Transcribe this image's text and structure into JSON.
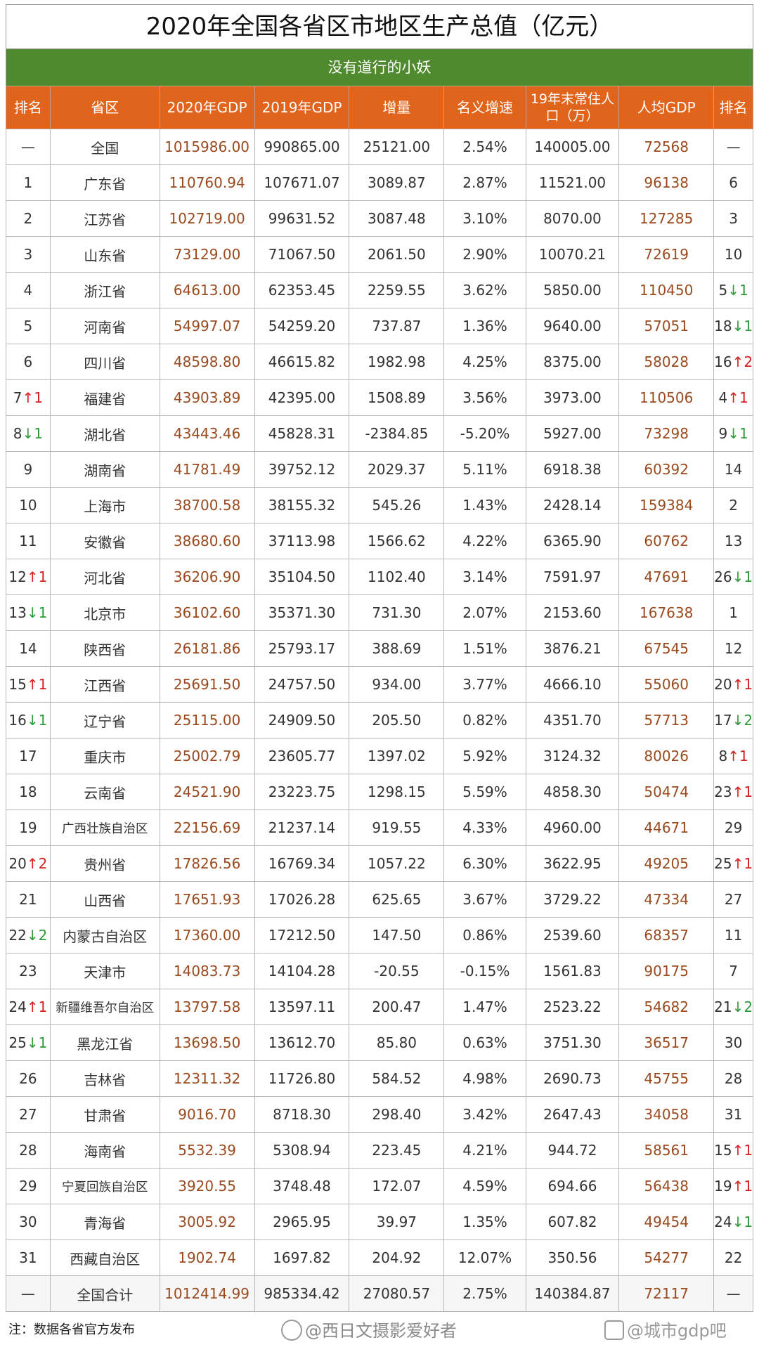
{
  "title": "2020年全国各省区市地区生产总值（亿元）",
  "subtitle": "没有道行的小妖",
  "headers": [
    "排名",
    "省区",
    "2020年GDP",
    "2019年GDP",
    "增量",
    "名义增速",
    "19年末常住人口（万）",
    "人均GDP",
    "排名"
  ],
  "rows": [
    {
      "rank": "—",
      "rank_arrow": "",
      "rank_change": "",
      "name": "全国",
      "gdp2020": "1015986.00",
      "gdp2019": "990865.00",
      "inc": "25121.00",
      "growth": "2.54%",
      "pop": "140005.00",
      "pc": "72568",
      "pc_rank": "—",
      "pc_arrow": "",
      "pc_change": ""
    },
    {
      "rank": "1",
      "rank_arrow": "",
      "rank_change": "",
      "name": "广东省",
      "gdp2020": "110760.94",
      "gdp2019": "107671.07",
      "inc": "3089.87",
      "growth": "2.87%",
      "pop": "11521.00",
      "pc": "96138",
      "pc_rank": "6",
      "pc_arrow": "",
      "pc_change": ""
    },
    {
      "rank": "2",
      "rank_arrow": "",
      "rank_change": "",
      "name": "江苏省",
      "gdp2020": "102719.00",
      "gdp2019": "99631.52",
      "inc": "3087.48",
      "growth": "3.10%",
      "pop": "8070.00",
      "pc": "127285",
      "pc_rank": "3",
      "pc_arrow": "",
      "pc_change": ""
    },
    {
      "rank": "3",
      "rank_arrow": "",
      "rank_change": "",
      "name": "山东省",
      "gdp2020": "73129.00",
      "gdp2019": "71067.50",
      "inc": "2061.50",
      "growth": "2.90%",
      "pop": "10070.21",
      "pc": "72619",
      "pc_rank": "10",
      "pc_arrow": "",
      "pc_change": ""
    },
    {
      "rank": "4",
      "rank_arrow": "",
      "rank_change": "",
      "name": "浙江省",
      "gdp2020": "64613.00",
      "gdp2019": "62353.45",
      "inc": "2259.55",
      "growth": "3.62%",
      "pop": "5850.00",
      "pc": "110450",
      "pc_rank": "5",
      "pc_arrow": "↓",
      "pc_change": "1"
    },
    {
      "rank": "5",
      "rank_arrow": "",
      "rank_change": "",
      "name": "河南省",
      "gdp2020": "54997.07",
      "gdp2019": "54259.20",
      "inc": "737.87",
      "growth": "1.36%",
      "pop": "9640.00",
      "pc": "57051",
      "pc_rank": "18",
      "pc_arrow": "↓",
      "pc_change": "1"
    },
    {
      "rank": "6",
      "rank_arrow": "",
      "rank_change": "",
      "name": "四川省",
      "gdp2020": "48598.80",
      "gdp2019": "46615.82",
      "inc": "1982.98",
      "growth": "4.25%",
      "pop": "8375.00",
      "pc": "58028",
      "pc_rank": "16",
      "pc_arrow": "↑",
      "pc_change": "2"
    },
    {
      "rank": "7",
      "rank_arrow": "↑",
      "rank_change": "1",
      "name": "福建省",
      "gdp2020": "43903.89",
      "gdp2019": "42395.00",
      "inc": "1508.89",
      "growth": "3.56%",
      "pop": "3973.00",
      "pc": "110506",
      "pc_rank": "4",
      "pc_arrow": "↑",
      "pc_change": "1"
    },
    {
      "rank": "8",
      "rank_arrow": "↓",
      "rank_change": "1",
      "name": "湖北省",
      "gdp2020": "43443.46",
      "gdp2019": "45828.31",
      "inc": "-2384.85",
      "growth": "-5.20%",
      "pop": "5927.00",
      "pc": "73298",
      "pc_rank": "9",
      "pc_arrow": "↓",
      "pc_change": "1"
    },
    {
      "rank": "9",
      "rank_arrow": "",
      "rank_change": "",
      "name": "湖南省",
      "gdp2020": "41781.49",
      "gdp2019": "39752.12",
      "inc": "2029.37",
      "growth": "5.11%",
      "pop": "6918.38",
      "pc": "60392",
      "pc_rank": "14",
      "pc_arrow": "",
      "pc_change": ""
    },
    {
      "rank": "10",
      "rank_arrow": "",
      "rank_change": "",
      "name": "上海市",
      "gdp2020": "38700.58",
      "gdp2019": "38155.32",
      "inc": "545.26",
      "growth": "1.43%",
      "pop": "2428.14",
      "pc": "159384",
      "pc_rank": "2",
      "pc_arrow": "",
      "pc_change": ""
    },
    {
      "rank": "11",
      "rank_arrow": "",
      "rank_change": "",
      "name": "安徽省",
      "gdp2020": "38680.60",
      "gdp2019": "37113.98",
      "inc": "1566.62",
      "growth": "4.22%",
      "pop": "6365.90",
      "pc": "60762",
      "pc_rank": "13",
      "pc_arrow": "",
      "pc_change": ""
    },
    {
      "rank": "12",
      "rank_arrow": "↑",
      "rank_change": "1",
      "name": "河北省",
      "gdp2020": "36206.90",
      "gdp2019": "35104.50",
      "inc": "1102.40",
      "growth": "3.14%",
      "pop": "7591.97",
      "pc": "47691",
      "pc_rank": "26",
      "pc_arrow": "↓",
      "pc_change": "1"
    },
    {
      "rank": "13",
      "rank_arrow": "↓",
      "rank_change": "1",
      "name": "北京市",
      "gdp2020": "36102.60",
      "gdp2019": "35371.30",
      "inc": "731.30",
      "growth": "2.07%",
      "pop": "2153.60",
      "pc": "167638",
      "pc_rank": "1",
      "pc_arrow": "",
      "pc_change": ""
    },
    {
      "rank": "14",
      "rank_arrow": "",
      "rank_change": "",
      "name": "陕西省",
      "gdp2020": "26181.86",
      "gdp2019": "25793.17",
      "inc": "388.69",
      "growth": "1.51%",
      "pop": "3876.21",
      "pc": "67545",
      "pc_rank": "12",
      "pc_arrow": "",
      "pc_change": ""
    },
    {
      "rank": "15",
      "rank_arrow": "↑",
      "rank_change": "1",
      "name": "江西省",
      "gdp2020": "25691.50",
      "gdp2019": "24757.50",
      "inc": "934.00",
      "growth": "3.77%",
      "pop": "4666.10",
      "pc": "55060",
      "pc_rank": "20",
      "pc_arrow": "↑",
      "pc_change": "1"
    },
    {
      "rank": "16",
      "rank_arrow": "↓",
      "rank_change": "1",
      "name": "辽宁省",
      "gdp2020": "25115.00",
      "gdp2019": "24909.50",
      "inc": "205.50",
      "growth": "0.82%",
      "pop": "4351.70",
      "pc": "57713",
      "pc_rank": "17",
      "pc_arrow": "↓",
      "pc_change": "2"
    },
    {
      "rank": "17",
      "rank_arrow": "",
      "rank_change": "",
      "name": "重庆市",
      "gdp2020": "25002.79",
      "gdp2019": "23605.77",
      "inc": "1397.02",
      "growth": "5.92%",
      "pop": "3124.32",
      "pc": "80026",
      "pc_rank": "8",
      "pc_arrow": "↑",
      "pc_change": "1"
    },
    {
      "rank": "18",
      "rank_arrow": "",
      "rank_change": "",
      "name": "云南省",
      "gdp2020": "24521.90",
      "gdp2019": "23223.75",
      "inc": "1298.15",
      "growth": "5.59%",
      "pop": "4858.30",
      "pc": "50474",
      "pc_rank": "23",
      "pc_arrow": "↑",
      "pc_change": "1"
    },
    {
      "rank": "19",
      "rank_arrow": "",
      "rank_change": "",
      "name": "广西壮族自治区",
      "gdp2020": "22156.69",
      "gdp2019": "21237.14",
      "inc": "919.55",
      "growth": "4.33%",
      "pop": "4960.00",
      "pc": "44671",
      "pc_rank": "29",
      "pc_arrow": "",
      "pc_change": ""
    },
    {
      "rank": "20",
      "rank_arrow": "↑",
      "rank_change": "2",
      "name": "贵州省",
      "gdp2020": "17826.56",
      "gdp2019": "16769.34",
      "inc": "1057.22",
      "growth": "6.30%",
      "pop": "3622.95",
      "pc": "49205",
      "pc_rank": "25",
      "pc_arrow": "↑",
      "pc_change": "1"
    },
    {
      "rank": "21",
      "rank_arrow": "",
      "rank_change": "",
      "name": "山西省",
      "gdp2020": "17651.93",
      "gdp2019": "17026.28",
      "inc": "625.65",
      "growth": "3.67%",
      "pop": "3729.22",
      "pc": "47334",
      "pc_rank": "27",
      "pc_arrow": "",
      "pc_change": ""
    },
    {
      "rank": "22",
      "rank_arrow": "↓",
      "rank_change": "2",
      "name": "内蒙古自治区",
      "gdp2020": "17360.00",
      "gdp2019": "17212.50",
      "inc": "147.50",
      "growth": "0.86%",
      "pop": "2539.60",
      "pc": "68357",
      "pc_rank": "11",
      "pc_arrow": "",
      "pc_change": ""
    },
    {
      "rank": "23",
      "rank_arrow": "",
      "rank_change": "",
      "name": "天津市",
      "gdp2020": "14083.73",
      "gdp2019": "14104.28",
      "inc": "-20.55",
      "growth": "-0.15%",
      "pop": "1561.83",
      "pc": "90175",
      "pc_rank": "7",
      "pc_arrow": "",
      "pc_change": ""
    },
    {
      "rank": "24",
      "rank_arrow": "↑",
      "rank_change": "1",
      "name": "新疆维吾尔自治区",
      "gdp2020": "13797.58",
      "gdp2019": "13597.11",
      "inc": "200.47",
      "growth": "1.47%",
      "pop": "2523.22",
      "pc": "54682",
      "pc_rank": "21",
      "pc_arrow": "↓",
      "pc_change": "2"
    },
    {
      "rank": "25",
      "rank_arrow": "↓",
      "rank_change": "1",
      "name": "黑龙江省",
      "gdp2020": "13698.50",
      "gdp2019": "13612.70",
      "inc": "85.80",
      "growth": "0.63%",
      "pop": "3751.30",
      "pc": "36517",
      "pc_rank": "30",
      "pc_arrow": "",
      "pc_change": ""
    },
    {
      "rank": "26",
      "rank_arrow": "",
      "rank_change": "",
      "name": "吉林省",
      "gdp2020": "12311.32",
      "gdp2019": "11726.80",
      "inc": "584.52",
      "growth": "4.98%",
      "pop": "2690.73",
      "pc": "45755",
      "pc_rank": "28",
      "pc_arrow": "",
      "pc_change": ""
    },
    {
      "rank": "27",
      "rank_arrow": "",
      "rank_change": "",
      "name": "甘肃省",
      "gdp2020": "9016.70",
      "gdp2019": "8718.30",
      "inc": "298.40",
      "growth": "3.42%",
      "pop": "2647.43",
      "pc": "34058",
      "pc_rank": "31",
      "pc_arrow": "",
      "pc_change": ""
    },
    {
      "rank": "28",
      "rank_arrow": "",
      "rank_change": "",
      "name": "海南省",
      "gdp2020": "5532.39",
      "gdp2019": "5308.94",
      "inc": "223.45",
      "growth": "4.21%",
      "pop": "944.72",
      "pc": "58561",
      "pc_rank": "15",
      "pc_arrow": "↑",
      "pc_change": "1"
    },
    {
      "rank": "29",
      "rank_arrow": "",
      "rank_change": "",
      "name": "宁夏回族自治区",
      "gdp2020": "3920.55",
      "gdp2019": "3748.48",
      "inc": "172.07",
      "growth": "4.59%",
      "pop": "694.66",
      "pc": "56438",
      "pc_rank": "19",
      "pc_arrow": "↑",
      "pc_change": "1"
    },
    {
      "rank": "30",
      "rank_arrow": "",
      "rank_change": "",
      "name": "青海省",
      "gdp2020": "3005.92",
      "gdp2019": "2965.95",
      "inc": "39.97",
      "growth": "1.35%",
      "pop": "607.82",
      "pc": "49454",
      "pc_rank": "24",
      "pc_arrow": "↓",
      "pc_change": "1"
    },
    {
      "rank": "31",
      "rank_arrow": "",
      "rank_change": "",
      "name": "西藏自治区",
      "gdp2020": "1902.74",
      "gdp2019": "1697.82",
      "inc": "204.92",
      "growth": "12.07%",
      "pop": "350.56",
      "pc": "54277",
      "pc_rank": "22",
      "pc_arrow": "",
      "pc_change": ""
    },
    {
      "rank": "—",
      "rank_arrow": "",
      "rank_change": "",
      "name": "全国合计",
      "gdp2020": "1012414.99",
      "gdp2019": "985334.42",
      "inc": "27080.57",
      "growth": "2.75%",
      "pop": "140384.87",
      "pc": "72117",
      "pc_rank": "—",
      "pc_arrow": "",
      "pc_change": ""
    }
  ],
  "footer": {
    "note": "注：数据各省官方发布",
    "watermark_left": "@西日文摄影爱好者",
    "watermark_right": "@城市gdp吧"
  },
  "colors": {
    "header_bg": "#e0641c",
    "subtitle_bg": "#4f8a2e",
    "value_accent": "#9a4a1e",
    "arrow_up": "#d62020",
    "arrow_down": "#2e9a3a"
  }
}
